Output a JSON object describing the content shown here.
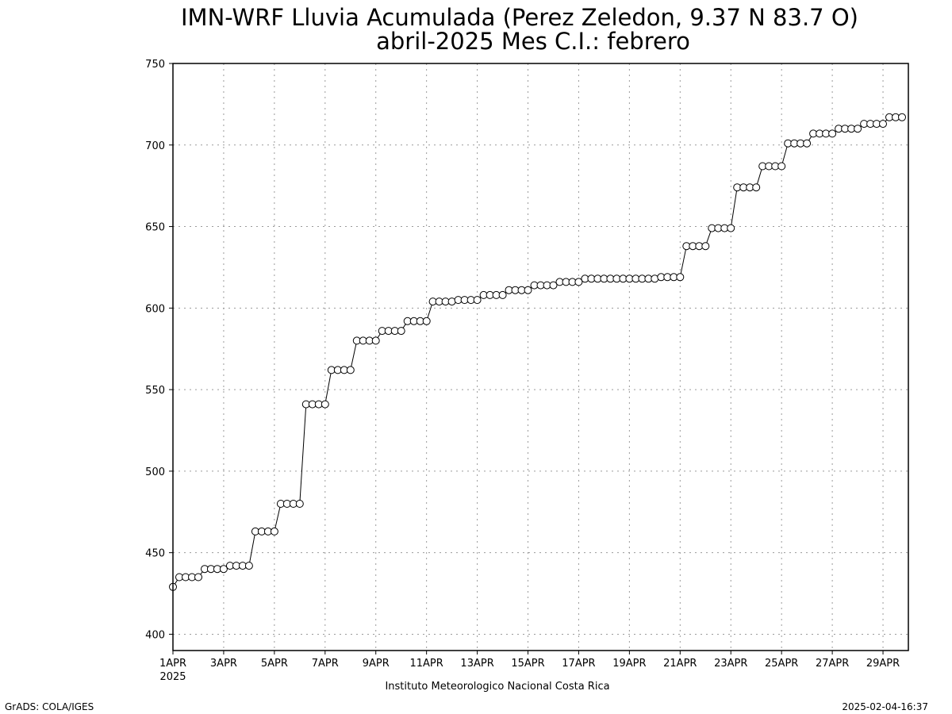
{
  "chart_data": {
    "type": "line",
    "title": "IMN-WRF  Lluvia Acumulada (Perez Zeledon, 9.37  N 83.7  O)",
    "subtitle": "abril-2025 Mes C.I.: febrero",
    "xlabel": "Instituto Meteorologico Nacional Costa Rica",
    "ylabel": "",
    "x_unit": "days since 1APR 2025 00Z",
    "xlim": [
      0,
      29
    ],
    "ylim": [
      390,
      750
    ],
    "grid": true,
    "marker": "open-circle",
    "y_ticks": [
      400,
      450,
      500,
      550,
      600,
      650,
      700,
      750
    ],
    "x_ticks": [
      {
        "day": 0,
        "label": "1APR",
        "sublabel": "2025"
      },
      {
        "day": 2,
        "label": "3APR"
      },
      {
        "day": 4,
        "label": "5APR"
      },
      {
        "day": 6,
        "label": "7APR"
      },
      {
        "day": 8,
        "label": "9APR"
      },
      {
        "day": 10,
        "label": "11APR"
      },
      {
        "day": 12,
        "label": "13APR"
      },
      {
        "day": 14,
        "label": "15APR"
      },
      {
        "day": 16,
        "label": "17APR"
      },
      {
        "day": 18,
        "label": "19APR"
      },
      {
        "day": 20,
        "label": "21APR"
      },
      {
        "day": 22,
        "label": "23APR"
      },
      {
        "day": 24,
        "label": "25APR"
      },
      {
        "day": 26,
        "label": "27APR"
      },
      {
        "day": 28,
        "label": "29APR"
      }
    ],
    "steps_per_day": 4,
    "series": [
      {
        "values": [
          429,
          435,
          435,
          435,
          435,
          440,
          440,
          440,
          440,
          442,
          442,
          442,
          442,
          463,
          463,
          463,
          463,
          480,
          480,
          480,
          480,
          541,
          541,
          541,
          541,
          562,
          562,
          562,
          562,
          580,
          580,
          580,
          580,
          586,
          586,
          586,
          586,
          592,
          592,
          592,
          592,
          604,
          604,
          604,
          604,
          605,
          605,
          605,
          605,
          608,
          608,
          608,
          608,
          611,
          611,
          611,
          611,
          614,
          614,
          614,
          614,
          616,
          616,
          616,
          616,
          618,
          618,
          618,
          618,
          618,
          618,
          618,
          618,
          618,
          618,
          618,
          618,
          619,
          619,
          619,
          619,
          638,
          638,
          638,
          638,
          649,
          649,
          649,
          649,
          674,
          674,
          674,
          674,
          687,
          687,
          687,
          687,
          701,
          701,
          701,
          701,
          707,
          707,
          707,
          707,
          710,
          710,
          710,
          710,
          713,
          713,
          713,
          713,
          717,
          717,
          717
        ]
      }
    ]
  },
  "footer": {
    "left_credit": "GrADS: COLA/IGES",
    "right_timestamp": "2025-02-04-16:37"
  }
}
